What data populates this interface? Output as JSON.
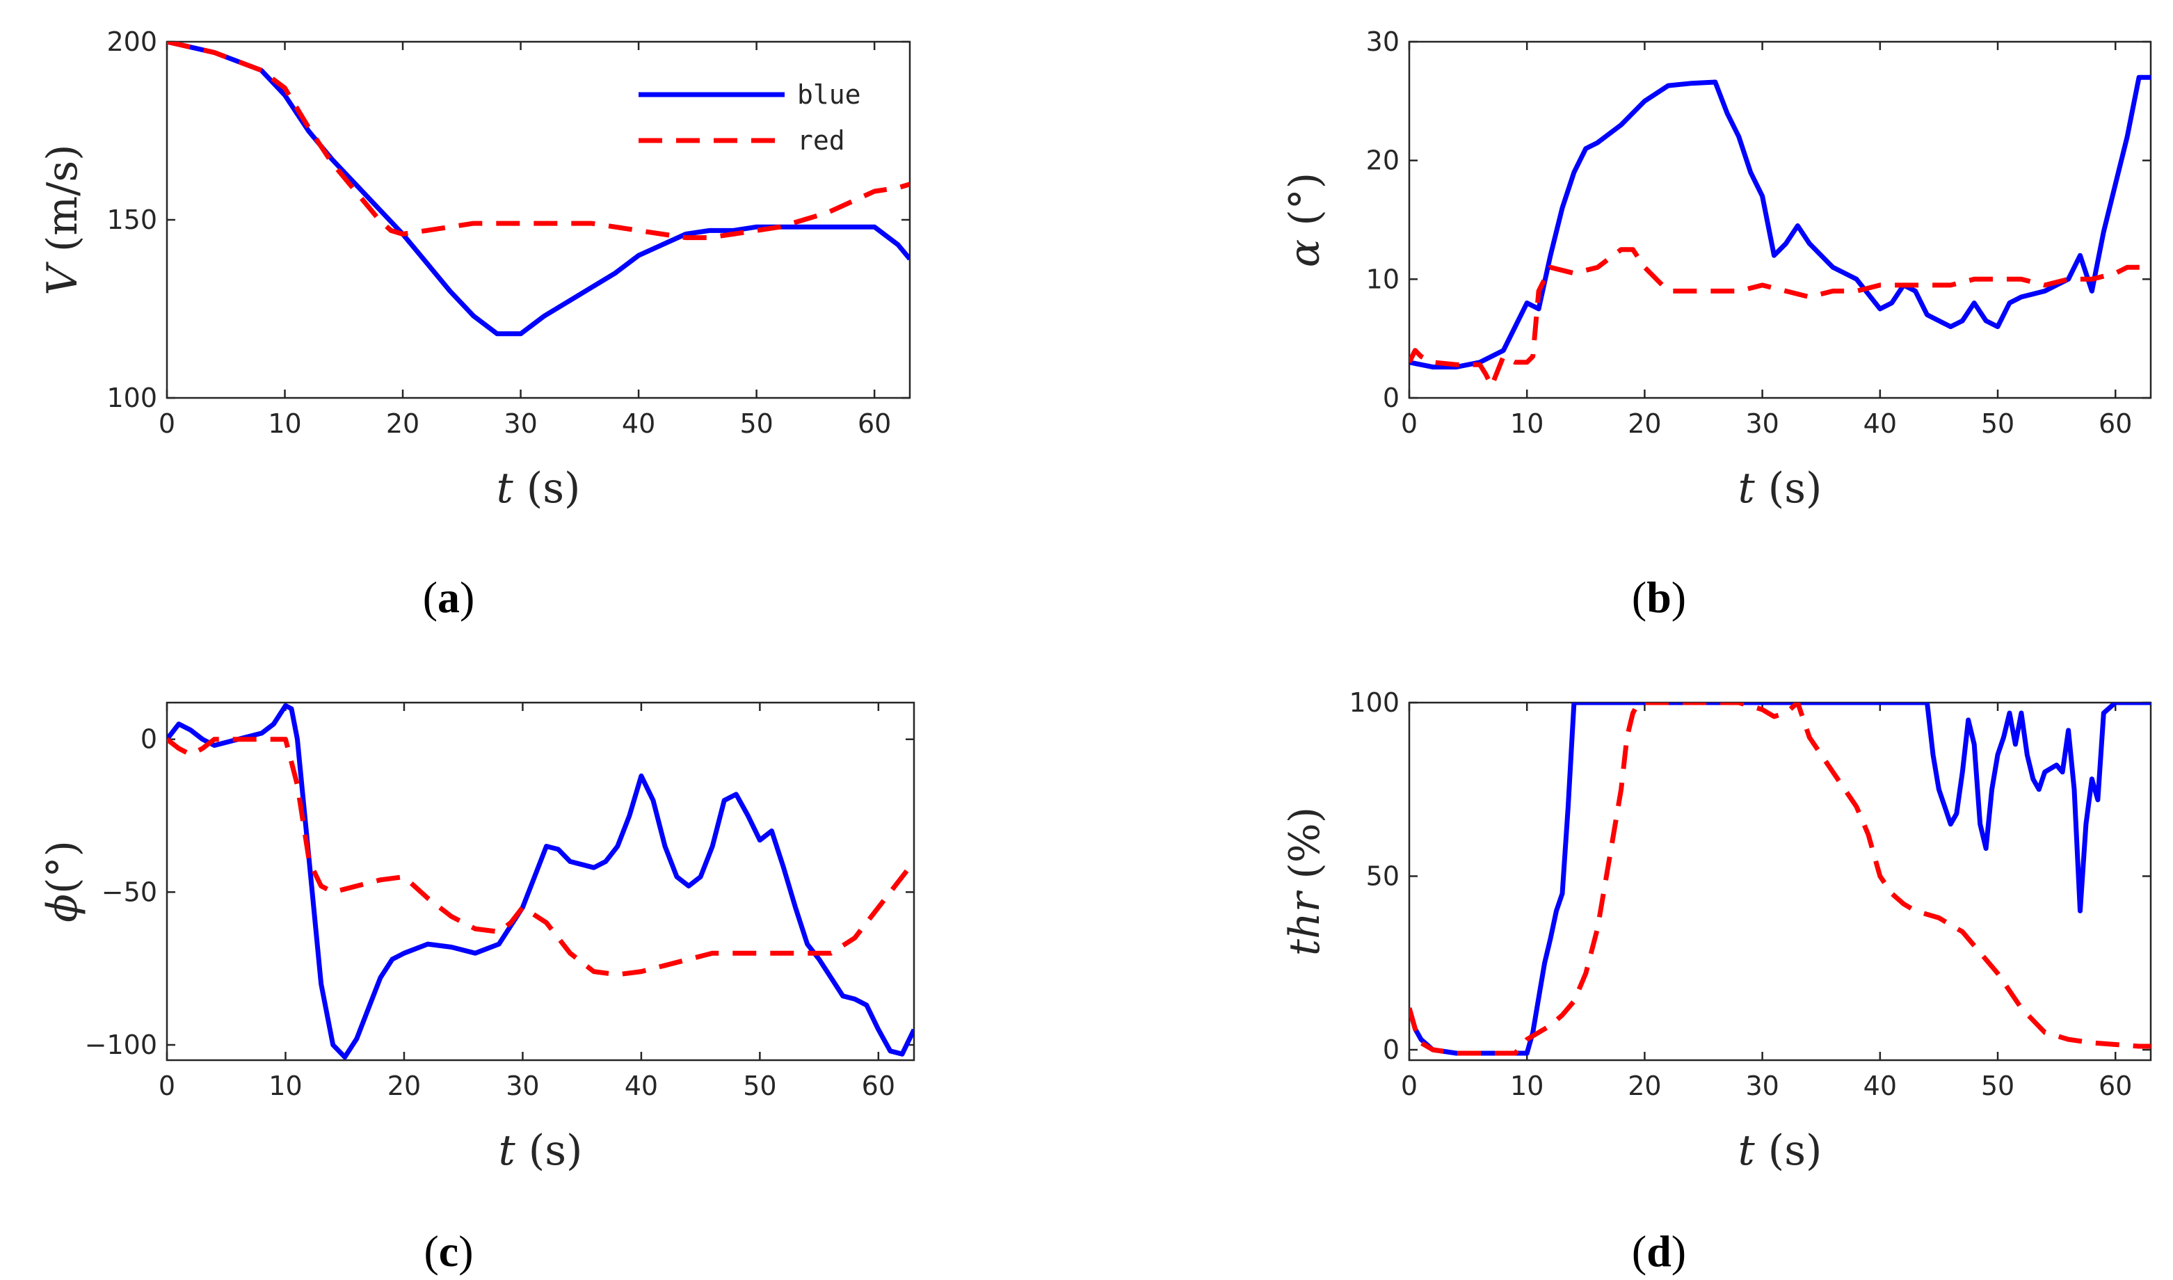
{
  "chart_data": [
    {
      "type": "line",
      "caption": "(a)",
      "ylabel_symbol": "V",
      "ylabel_unit": " (m/s)",
      "xlabel_symbol": "t",
      "xlabel_unit": " (s)",
      "xlim": [
        0,
        63
      ],
      "ylim": [
        100,
        200
      ],
      "xticks": [
        0,
        10,
        20,
        30,
        40,
        50,
        60
      ],
      "yticks": [
        100,
        150,
        200
      ],
      "legend": {
        "placement": "top-right",
        "entries": [
          "blue",
          "red"
        ]
      },
      "series": [
        {
          "name": "blue",
          "color": "#0000ff",
          "style": "solid",
          "x": [
            0,
            4,
            8,
            10,
            12,
            14,
            16,
            18,
            20,
            22,
            24,
            26,
            28,
            30,
            32,
            34,
            36,
            38,
            40,
            42,
            44,
            46,
            48,
            50,
            52,
            54,
            56,
            58,
            60,
            62,
            63
          ],
          "y": [
            200,
            197,
            192,
            185,
            175,
            167,
            160,
            153,
            146,
            138,
            130,
            123,
            118,
            118,
            123,
            127,
            131,
            135,
            140,
            143,
            146,
            147,
            147,
            148,
            148,
            148,
            148,
            148,
            148,
            143,
            139
          ]
        },
        {
          "name": "red",
          "color": "#ff0000",
          "style": "dashed",
          "x": [
            0,
            4,
            8,
            10,
            12,
            14,
            16,
            18,
            19,
            20,
            22,
            24,
            26,
            28,
            30,
            32,
            34,
            36,
            38,
            40,
            42,
            44,
            46,
            48,
            50,
            52,
            54,
            56,
            58,
            60,
            62,
            63
          ],
          "y": [
            200,
            197,
            192,
            187,
            176,
            166,
            158,
            150,
            147,
            146,
            147,
            148,
            149,
            149,
            149,
            149,
            149,
            149,
            148,
            147,
            146,
            145,
            145,
            146,
            147,
            148,
            150,
            152,
            155,
            158,
            159,
            160
          ]
        }
      ]
    },
    {
      "type": "line",
      "caption": "(b)",
      "ylabel_symbol": "α",
      "ylabel_unit": " (°)",
      "xlabel_symbol": "t",
      "xlabel_unit": " (s)",
      "xlim": [
        0,
        63
      ],
      "ylim": [
        0,
        30
      ],
      "xticks": [
        0,
        10,
        20,
        30,
        40,
        50,
        60
      ],
      "yticks": [
        0,
        10,
        20,
        30
      ],
      "series": [
        {
          "name": "blue",
          "color": "#0000ff",
          "style": "solid",
          "x": [
            0,
            2,
            4,
            6,
            8,
            9,
            10,
            11,
            12,
            13,
            14,
            15,
            16,
            18,
            20,
            22,
            24,
            26,
            27,
            28,
            29,
            30,
            31,
            32,
            33,
            34,
            36,
            38,
            40,
            41,
            42,
            43,
            44,
            46,
            47,
            48,
            49,
            50,
            51,
            52,
            54,
            56,
            57,
            58,
            59,
            60,
            61,
            62,
            63
          ],
          "y": [
            3,
            2.6,
            2.6,
            3,
            4,
            6,
            8,
            7.5,
            12,
            16,
            19,
            21,
            21.5,
            23,
            25,
            26.3,
            26.5,
            26.6,
            24,
            22,
            19,
            17,
            12,
            13,
            14.5,
            13,
            11,
            10,
            7.5,
            8,
            9.5,
            9,
            7,
            6,
            6.5,
            8,
            6.5,
            6,
            8,
            8.5,
            9,
            10,
            12,
            9,
            14,
            18,
            22,
            27,
            27
          ]
        },
        {
          "name": "red",
          "color": "#ff0000",
          "style": "dashed",
          "x": [
            0,
            0.5,
            1,
            2,
            4,
            6,
            6.5,
            7,
            8,
            9,
            10,
            10.5,
            11,
            12,
            14,
            16,
            18,
            19,
            20,
            22,
            24,
            26,
            28,
            30,
            32,
            34,
            36,
            38,
            40,
            42,
            44,
            46,
            48,
            50,
            52,
            54,
            56,
            58,
            60,
            61,
            62,
            63
          ],
          "y": [
            3,
            4,
            3.5,
            3,
            2.8,
            2.8,
            2,
            1,
            3.5,
            3,
            3,
            3.5,
            9,
            11,
            10.5,
            11,
            12.5,
            12.5,
            11,
            9,
            9,
            9,
            9,
            9.5,
            9,
            8.5,
            9,
            9,
            9.5,
            9.5,
            9.5,
            9.5,
            10,
            10,
            10,
            9.5,
            10,
            10,
            10.5,
            11,
            11,
            11
          ]
        }
      ]
    },
    {
      "type": "line",
      "caption": "(c)",
      "ylabel_symbol": "ϕ",
      "ylabel_unit": "(°)",
      "xlabel_symbol": "t",
      "xlabel_unit": " (s)",
      "xlim": [
        0,
        63
      ],
      "ylim": [
        -105,
        12
      ],
      "xticks": [
        0,
        10,
        20,
        30,
        40,
        50,
        60
      ],
      "yticks": [
        -100,
        -50,
        0
      ],
      "series": [
        {
          "name": "blue",
          "color": "#0000ff",
          "style": "solid",
          "x": [
            0,
            1,
            2,
            3,
            4,
            5,
            6,
            8,
            9,
            10,
            10.5,
            11,
            11.5,
            12,
            13,
            14,
            15,
            16,
            17,
            18,
            19,
            20,
            22,
            24,
            26,
            28,
            30,
            31,
            32,
            33,
            34,
            35,
            36,
            37,
            38,
            39,
            40,
            41,
            42,
            43,
            44,
            45,
            46,
            47,
            48,
            49,
            50,
            51,
            52,
            53,
            54,
            55,
            56,
            57,
            58,
            59,
            60,
            61,
            62,
            63
          ],
          "y": [
            0,
            5,
            3,
            0,
            -2,
            -1,
            0,
            2,
            5,
            11,
            10,
            0,
            -20,
            -40,
            -80,
            -100,
            -104,
            -98,
            -88,
            -78,
            -72,
            -70,
            -67,
            -68,
            -70,
            -67,
            -55,
            -45,
            -35,
            -36,
            -40,
            -41,
            -42,
            -40,
            -35,
            -25,
            -12,
            -20,
            -35,
            -45,
            -48,
            -45,
            -35,
            -20,
            -18,
            -25,
            -33,
            -30,
            -42,
            -55,
            -67,
            -72,
            -78,
            -84,
            -85,
            -87,
            -95,
            -102,
            -103,
            -95
          ]
        },
        {
          "name": "red",
          "color": "#ff0000",
          "style": "dashed",
          "x": [
            0,
            1,
            2,
            3,
            4,
            6,
            8,
            10,
            11,
            12,
            13,
            14,
            16,
            18,
            20,
            22,
            24,
            26,
            28,
            29,
            30,
            32,
            34,
            36,
            38,
            40,
            42,
            44,
            46,
            48,
            50,
            52,
            54,
            56,
            58,
            60,
            62,
            63
          ],
          "y": [
            0,
            -3,
            -5,
            -3,
            0,
            0,
            0,
            0,
            -15,
            -40,
            -48,
            -50,
            -48,
            -46,
            -45,
            -52,
            -58,
            -62,
            -63,
            -60,
            -55,
            -60,
            -70,
            -76,
            -77,
            -76,
            -74,
            -72,
            -70,
            -70,
            -70,
            -70,
            -70,
            -70,
            -65,
            -55,
            -45,
            -40
          ]
        }
      ]
    },
    {
      "type": "line",
      "caption": "(d)",
      "ylabel_symbol": "thr",
      "ylabel_unit": " (%)",
      "xlabel_symbol": "t",
      "xlabel_unit": " (s)",
      "xlim": [
        0,
        63
      ],
      "ylim": [
        -3,
        100
      ],
      "xticks": [
        0,
        10,
        20,
        30,
        40,
        50,
        60
      ],
      "yticks": [
        0,
        50,
        100
      ],
      "series": [
        {
          "name": "blue",
          "color": "#0000ff",
          "style": "solid",
          "x": [
            0,
            0.5,
            1,
            2,
            4,
            6,
            8,
            9,
            10,
            10.5,
            11,
            11.5,
            12,
            12.5,
            13,
            13.5,
            14,
            16,
            20,
            30,
            40,
            44,
            44.5,
            45,
            45.5,
            46,
            46.5,
            47,
            47.5,
            48,
            48.5,
            49,
            49.5,
            50,
            50.5,
            51,
            51.5,
            52,
            52.5,
            53,
            53.5,
            54,
            55,
            55.5,
            56,
            56.5,
            57,
            57.5,
            58,
            58.5,
            59,
            60,
            62,
            63
          ],
          "y": [
            12,
            6,
            3,
            0,
            -1,
            -1,
            -1,
            -1,
            -1,
            5,
            15,
            25,
            32,
            40,
            45,
            70,
            100,
            100,
            100,
            100,
            100,
            100,
            85,
            75,
            70,
            65,
            68,
            80,
            95,
            88,
            65,
            58,
            75,
            85,
            90,
            97,
            88,
            97,
            85,
            78,
            75,
            80,
            82,
            80,
            92,
            75,
            40,
            65,
            78,
            72,
            97,
            100,
            100,
            100
          ]
        },
        {
          "name": "red",
          "color": "#ff0000",
          "style": "dashed",
          "x": [
            0,
            0.5,
            1,
            2,
            4,
            6,
            8,
            9,
            10,
            11,
            12,
            13,
            14,
            15,
            16,
            17,
            18,
            18.5,
            19,
            19.5,
            20,
            22,
            24,
            26,
            28,
            30,
            31,
            32,
            33,
            34,
            35,
            36,
            37,
            38,
            39,
            40,
            41,
            42,
            43,
            44,
            45,
            46,
            47,
            48,
            50,
            52,
            54,
            56,
            58,
            60,
            62,
            63
          ],
          "y": [
            12,
            6,
            2,
            0,
            -1,
            -1,
            -1,
            -1,
            3,
            5,
            7,
            10,
            14,
            22,
            35,
            55,
            75,
            90,
            97,
            100,
            100,
            100,
            100,
            100,
            100,
            98,
            96,
            97,
            100,
            90,
            85,
            80,
            75,
            70,
            62,
            50,
            45,
            42,
            40,
            39,
            38,
            36,
            34,
            30,
            22,
            12,
            5,
            3,
            2,
            1.5,
            1,
            1
          ]
        }
      ]
    }
  ]
}
